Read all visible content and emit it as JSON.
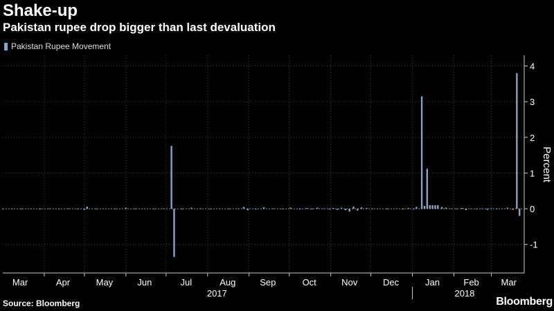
{
  "title": "Shake-up",
  "subtitle": "Pakistan rupee drop bigger than last devaluation",
  "legend_label": "Pakistan Rupee Movement",
  "source": "Source: Bloomberg",
  "brand": "Bloomberg",
  "colors": {
    "bar": "#8aa3c7",
    "background": "#000000",
    "grid": "#555555",
    "zero_line": "#aaaaaa",
    "text": "#ffffff"
  },
  "chart_data": {
    "type": "bar",
    "title": "Pakistan rupee drop bigger than last devaluation",
    "ylabel": "Percent",
    "ylim": [
      -1.8,
      4.3
    ],
    "yticks": [
      -1,
      0,
      1,
      2,
      3,
      4
    ],
    "ytick_labels": [
      "-1",
      "0",
      "1",
      "2",
      "3",
      "4"
    ],
    "x_range": [
      "2017-03-01",
      "2018-03-25"
    ],
    "month_labels": [
      {
        "label": "Mar",
        "date": "2017-03-14"
      },
      {
        "label": "Apr",
        "date": "2017-04-15"
      },
      {
        "label": "May",
        "date": "2017-05-16"
      },
      {
        "label": "Jun",
        "date": "2017-06-15"
      },
      {
        "label": "Jul",
        "date": "2017-07-16"
      },
      {
        "label": "Aug",
        "date": "2017-08-16"
      },
      {
        "label": "Sep",
        "date": "2017-09-15"
      },
      {
        "label": "Oct",
        "date": "2017-10-16"
      },
      {
        "label": "Nov",
        "date": "2017-11-15"
      },
      {
        "label": "Dec",
        "date": "2017-12-16"
      },
      {
        "label": "Jan",
        "date": "2018-01-16"
      },
      {
        "label": "Feb",
        "date": "2018-02-14"
      },
      {
        "label": "Mar",
        "date": "2018-03-14"
      }
    ],
    "year_labels": [
      {
        "label": "2017",
        "date": "2017-08-08"
      },
      {
        "label": "2018",
        "date": "2018-02-09"
      }
    ],
    "gridline_dates": [
      "2017-04-01",
      "2017-05-01",
      "2017-06-01",
      "2017-07-01",
      "2017-08-01",
      "2017-09-01",
      "2017-10-01",
      "2017-11-01",
      "2017-12-01",
      "2018-01-01",
      "2018-02-01",
      "2018-03-01"
    ],
    "series": [
      {
        "name": "Pakistan Rupee Movement",
        "points": [
          {
            "date": "2017-03-01",
            "value": -0.01
          },
          {
            "date": "2017-03-08",
            "value": 0.01
          },
          {
            "date": "2017-03-15",
            "value": -0.01
          },
          {
            "date": "2017-03-22",
            "value": 0.01
          },
          {
            "date": "2017-03-29",
            "value": -0.02
          },
          {
            "date": "2017-04-05",
            "value": 0.01
          },
          {
            "date": "2017-04-12",
            "value": -0.01
          },
          {
            "date": "2017-04-19",
            "value": 0.01
          },
          {
            "date": "2017-04-26",
            "value": -0.01
          },
          {
            "date": "2017-05-01",
            "value": -0.03
          },
          {
            "date": "2017-05-03",
            "value": 0.06
          },
          {
            "date": "2017-05-10",
            "value": -0.01
          },
          {
            "date": "2017-05-17",
            "value": 0.01
          },
          {
            "date": "2017-05-24",
            "value": -0.01
          },
          {
            "date": "2017-06-01",
            "value": 0.03
          },
          {
            "date": "2017-06-08",
            "value": -0.01
          },
          {
            "date": "2017-06-15",
            "value": 0.01
          },
          {
            "date": "2017-06-22",
            "value": -0.01
          },
          {
            "date": "2017-06-29",
            "value": 0.01
          },
          {
            "date": "2017-07-05",
            "value": 1.76
          },
          {
            "date": "2017-07-07",
            "value": -1.35
          },
          {
            "date": "2017-07-13",
            "value": -0.02
          },
          {
            "date": "2017-07-20",
            "value": 0.03
          },
          {
            "date": "2017-07-27",
            "value": 0.01
          },
          {
            "date": "2017-08-03",
            "value": -0.01
          },
          {
            "date": "2017-08-10",
            "value": 0.01
          },
          {
            "date": "2017-08-17",
            "value": -0.01
          },
          {
            "date": "2017-08-24",
            "value": 0.01
          },
          {
            "date": "2017-08-28",
            "value": 0.05
          },
          {
            "date": "2017-08-31",
            "value": -0.04
          },
          {
            "date": "2017-09-06",
            "value": -0.02
          },
          {
            "date": "2017-09-12",
            "value": 0.04
          },
          {
            "date": "2017-09-19",
            "value": 0.01
          },
          {
            "date": "2017-09-26",
            "value": -0.01
          },
          {
            "date": "2017-10-02",
            "value": 0.03
          },
          {
            "date": "2017-10-09",
            "value": -0.02
          },
          {
            "date": "2017-10-14",
            "value": 0.02
          },
          {
            "date": "2017-10-18",
            "value": -0.02
          },
          {
            "date": "2017-10-22",
            "value": 0.03
          },
          {
            "date": "2017-10-27",
            "value": 0.01
          },
          {
            "date": "2017-10-31",
            "value": -0.02
          },
          {
            "date": "2017-11-03",
            "value": 0.02
          },
          {
            "date": "2017-11-06",
            "value": -0.03
          },
          {
            "date": "2017-11-09",
            "value": 0.03
          },
          {
            "date": "2017-11-12",
            "value": -0.04
          },
          {
            "date": "2017-11-15",
            "value": -0.08
          },
          {
            "date": "2017-11-18",
            "value": 0.06
          },
          {
            "date": "2017-11-21",
            "value": -0.05
          },
          {
            "date": "2017-11-24",
            "value": 0.04
          },
          {
            "date": "2017-11-28",
            "value": 0.02
          },
          {
            "date": "2017-12-02",
            "value": -0.01
          },
          {
            "date": "2017-12-06",
            "value": 0.01
          },
          {
            "date": "2017-12-13",
            "value": -0.01
          },
          {
            "date": "2017-12-20",
            "value": 0.01
          },
          {
            "date": "2017-12-25",
            "value": -0.02
          },
          {
            "date": "2017-12-29",
            "value": 0.02
          },
          {
            "date": "2018-01-02",
            "value": -0.02
          },
          {
            "date": "2018-01-04",
            "value": 0.05
          },
          {
            "date": "2018-01-08",
            "value": 3.15
          },
          {
            "date": "2018-01-10",
            "value": 0.08
          },
          {
            "date": "2018-01-12",
            "value": 1.12
          },
          {
            "date": "2018-01-14",
            "value": 0.1
          },
          {
            "date": "2018-01-16",
            "value": 0.1
          },
          {
            "date": "2018-01-18",
            "value": 0.1
          },
          {
            "date": "2018-01-20",
            "value": 0.1
          },
          {
            "date": "2018-01-23",
            "value": 0.05
          },
          {
            "date": "2018-01-26",
            "value": 0.03
          },
          {
            "date": "2018-01-30",
            "value": 0.01
          },
          {
            "date": "2018-02-03",
            "value": -0.01
          },
          {
            "date": "2018-02-07",
            "value": 0.02
          },
          {
            "date": "2018-02-10",
            "value": -0.04
          },
          {
            "date": "2018-02-14",
            "value": 0.01
          },
          {
            "date": "2018-02-18",
            "value": -0.01
          },
          {
            "date": "2018-02-22",
            "value": 0.01
          },
          {
            "date": "2018-02-26",
            "value": -0.03
          },
          {
            "date": "2018-03-01",
            "value": 0.01
          },
          {
            "date": "2018-03-05",
            "value": -0.01
          },
          {
            "date": "2018-03-09",
            "value": 0.01
          },
          {
            "date": "2018-03-13",
            "value": 0.03
          },
          {
            "date": "2018-03-17",
            "value": -0.03
          },
          {
            "date": "2018-03-20",
            "value": 3.8
          },
          {
            "date": "2018-03-22",
            "value": -0.2
          }
        ]
      }
    ],
    "grid": true,
    "legend_position": "top-left"
  }
}
